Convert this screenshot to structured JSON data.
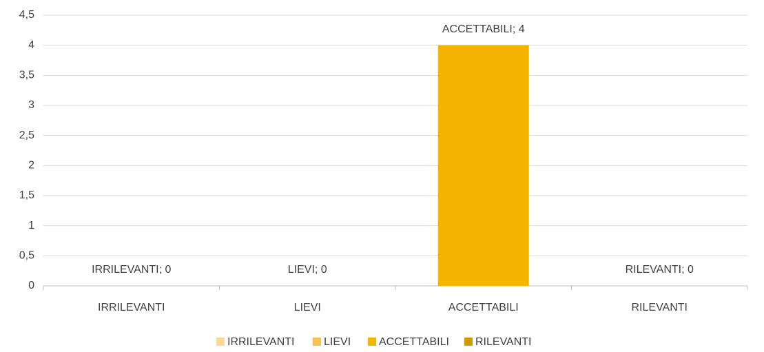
{
  "chart_data": {
    "type": "bar",
    "categories": [
      "IRRILEVANTI",
      "LIEVI",
      "ACCETTABILI",
      "RILEVANTI"
    ],
    "values": [
      0,
      0,
      4,
      0
    ],
    "value_labels": [
      "IRRILEVANTI; 0",
      "LIEVI; 0",
      "ACCETTABILI; 4",
      "RILEVANTI; 0"
    ],
    "colors": [
      "#fbd99a",
      "#f8c04e",
      "#f5b400",
      "#d39b00"
    ],
    "ylim": [
      0,
      4.5
    ],
    "yticks": [
      0,
      {
        "value": 0.5,
        "label": "0,5"
      },
      1,
      {
        "value": 1.5,
        "label": "1,5"
      },
      2,
      {
        "value": 2.5,
        "label": "2,5"
      },
      3,
      {
        "value": 3.5,
        "label": "3,5"
      },
      4,
      {
        "value": 4.5,
        "label": "4,5"
      }
    ],
    "grid": true,
    "legend": "bottom"
  }
}
